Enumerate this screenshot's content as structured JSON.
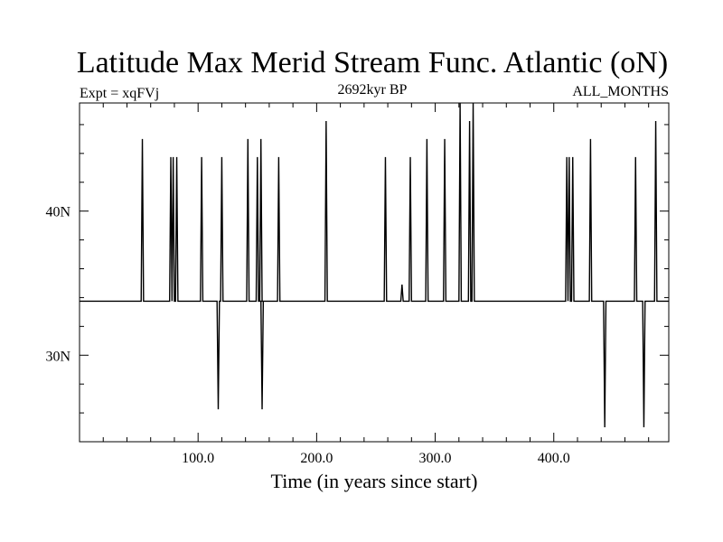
{
  "chart_data": {
    "type": "line",
    "title": "Latitude Max Merid Stream Func. Atlantic (oN)",
    "subtitle_left": "Expt = xqFVj",
    "subtitle_center": "2692kyr BP",
    "subtitle_right": "ALL_MONTHS",
    "xlabel": "Time (in years since start)",
    "ylabel": "",
    "xlim": [
      0,
      497
    ],
    "ylim": [
      24.0,
      47.5
    ],
    "x_ticks": [
      100,
      200,
      300,
      400
    ],
    "x_tick_labels": [
      "100.0",
      "200.0",
      "300.0",
      "400.0"
    ],
    "y_ticks": [
      30,
      40
    ],
    "y_tick_labels": [
      "30N",
      "40N"
    ],
    "baseline": 33.75,
    "spikes": [
      [
        53,
        45.0
      ],
      [
        77,
        43.75
      ],
      [
        79,
        43.75
      ],
      [
        82,
        43.75
      ],
      [
        103,
        43.75
      ],
      [
        117,
        26.25
      ],
      [
        120,
        43.75
      ],
      [
        142,
        45.0
      ],
      [
        150,
        43.75
      ],
      [
        153,
        45.0
      ],
      [
        154,
        26.25
      ],
      [
        168,
        43.75
      ],
      [
        208,
        46.25
      ],
      [
        258,
        43.75
      ],
      [
        272,
        34.9
      ],
      [
        279,
        43.75
      ],
      [
        293,
        45.0
      ],
      [
        308,
        45.0
      ],
      [
        321,
        47.5
      ],
      [
        329,
        46.25
      ],
      [
        332,
        47.5
      ],
      [
        411,
        43.75
      ],
      [
        413,
        43.75
      ],
      [
        416,
        43.75
      ],
      [
        431,
        45.0
      ],
      [
        443,
        25.0
      ],
      [
        469,
        43.75
      ],
      [
        476,
        25.0
      ],
      [
        486,
        46.25
      ]
    ]
  }
}
